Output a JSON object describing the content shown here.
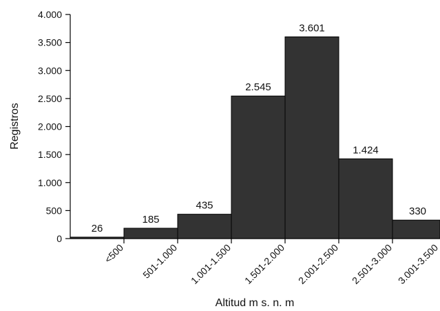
{
  "chart_data": {
    "type": "bar",
    "title": "",
    "xlabel": "Altitud m s. n. m",
    "ylabel": "Registros",
    "categories": [
      "<500",
      "501-1.000",
      "1.001-1.500",
      "1.501-2.000",
      "2.001-2.500",
      "2.501-3.000",
      "3.001-3.500"
    ],
    "values": [
      26,
      185,
      435,
      2545,
      3601,
      1424,
      330
    ],
    "data_labels": [
      "26",
      "185",
      "435",
      "2.545",
      "3.601",
      "1.424",
      "330"
    ],
    "ylim": [
      0,
      4000
    ],
    "yticks": [
      0,
      500,
      1000,
      1500,
      2000,
      2500,
      3000,
      3500,
      4000
    ],
    "ytick_labels": [
      "0",
      "500",
      "1.000",
      "1.500",
      "2.000",
      "2.500",
      "3.000",
      "3.500",
      "4.000"
    ],
    "grid": false,
    "legend": "none",
    "bar_color": "#333333",
    "bar_edge_color": "#000000"
  }
}
